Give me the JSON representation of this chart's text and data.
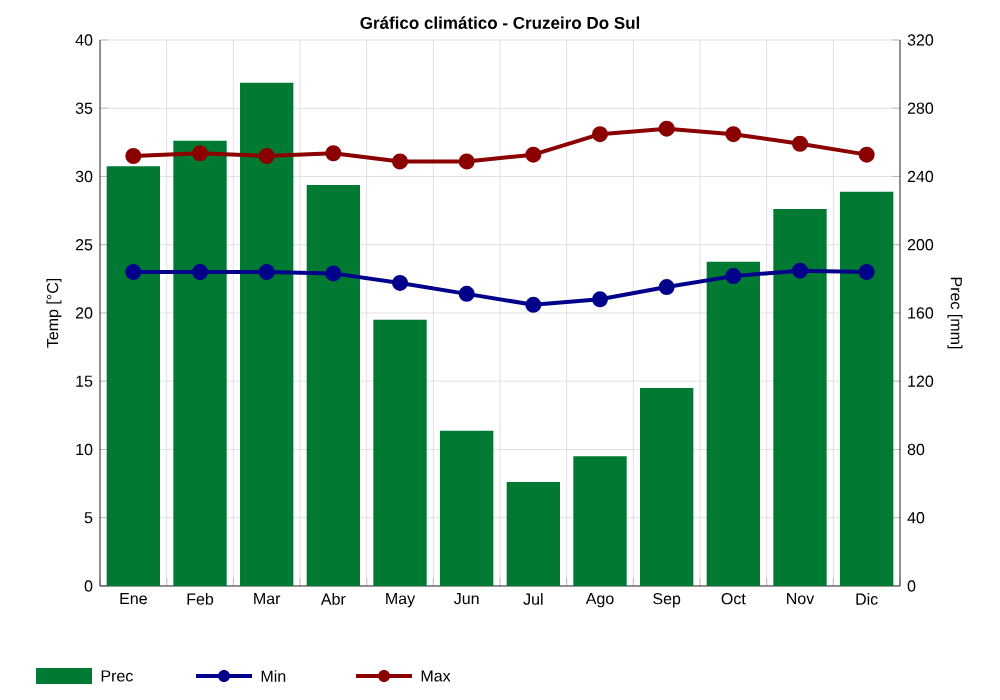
{
  "chart_data": {
    "type": "bar",
    "title": "Gráfico climático - Cruzeiro Do Sul",
    "categories": [
      "Ene",
      "Feb",
      "Mar",
      "Abr",
      "May",
      "Jun",
      "Jul",
      "Ago",
      "Sep",
      "Oct",
      "Nov",
      "Dic"
    ],
    "ylabel": "Temp [°C]",
    "y2label": "Prec [mm]",
    "ylim": [
      0,
      40
    ],
    "yticks": [
      0,
      5,
      10,
      15,
      20,
      25,
      30,
      35,
      40
    ],
    "y2lim": [
      0,
      320
    ],
    "y2ticks": [
      0,
      40,
      80,
      120,
      160,
      200,
      240,
      280,
      320
    ],
    "series": [
      {
        "name": "Prec",
        "axis": "y2",
        "color": "#007a33",
        "values": [
          246,
          261,
          295,
          235,
          156,
          91,
          61,
          76,
          116,
          190,
          221,
          231
        ]
      },
      {
        "name": "Min",
        "type": "line",
        "color": "#00008b",
        "values": [
          23.0,
          23.0,
          23.0,
          22.9,
          22.2,
          21.4,
          20.6,
          21.0,
          21.9,
          22.7,
          23.1,
          23.0
        ]
      },
      {
        "name": "Max",
        "type": "line",
        "color": "#8b0000",
        "values": [
          31.5,
          31.7,
          31.5,
          31.7,
          31.1,
          31.1,
          31.6,
          33.1,
          33.5,
          33.1,
          32.4,
          31.6
        ]
      }
    ],
    "grid": true,
    "legend": "bottom",
    "marker": "circle"
  }
}
